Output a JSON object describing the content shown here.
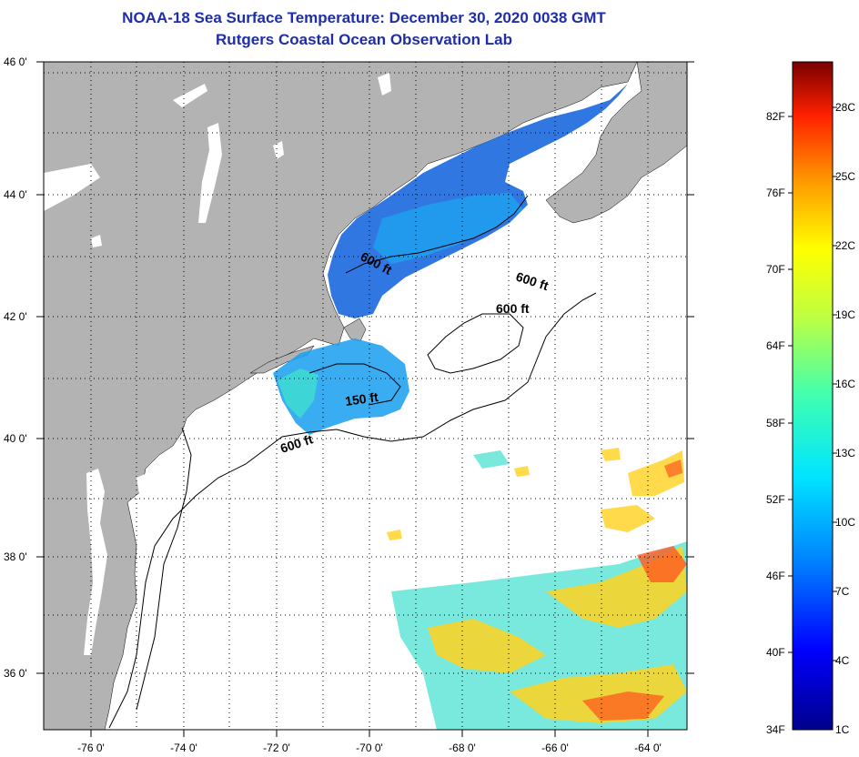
{
  "header": {
    "title_line1": "NOAA-18 Sea Surface Temperature:  December 30, 2020 0038 GMT",
    "title_line2": "Rutgers Coastal Ocean Observation Lab"
  },
  "map": {
    "lat_labels": [
      "46 0'",
      "44 0'",
      "42 0'",
      "40 0'",
      "38 0'",
      "36 0'"
    ],
    "lon_labels": [
      "-76 0'",
      "-74 0'",
      "-72 0'",
      "-70 0'",
      "-68 0'",
      "-66 0'",
      "-64 0'"
    ],
    "contour_labels": [
      "600 ft",
      "600 ft",
      "600 ft",
      "150 ft",
      "600 ft"
    ],
    "colors": {
      "land": "#b3b3b3",
      "ocean": "#ffffff",
      "cold": "#1f6be0",
      "cool": "#1fa0f0",
      "teal": "#40e0d0",
      "warm": "#ffd21f",
      "hot": "#ff5a1f"
    }
  },
  "colorbar": {
    "fahrenheit_labels": [
      "82F",
      "76F",
      "70F",
      "64F",
      "58F",
      "52F",
      "46F",
      "40F",
      "34F"
    ],
    "celsius_labels": [
      "28C",
      "25C",
      "22C",
      "19C",
      "16C",
      "13C",
      "10C",
      "7C",
      "4C",
      "1C"
    ],
    "range_c": [
      1,
      31
    ],
    "range_f": [
      34,
      88
    ]
  }
}
